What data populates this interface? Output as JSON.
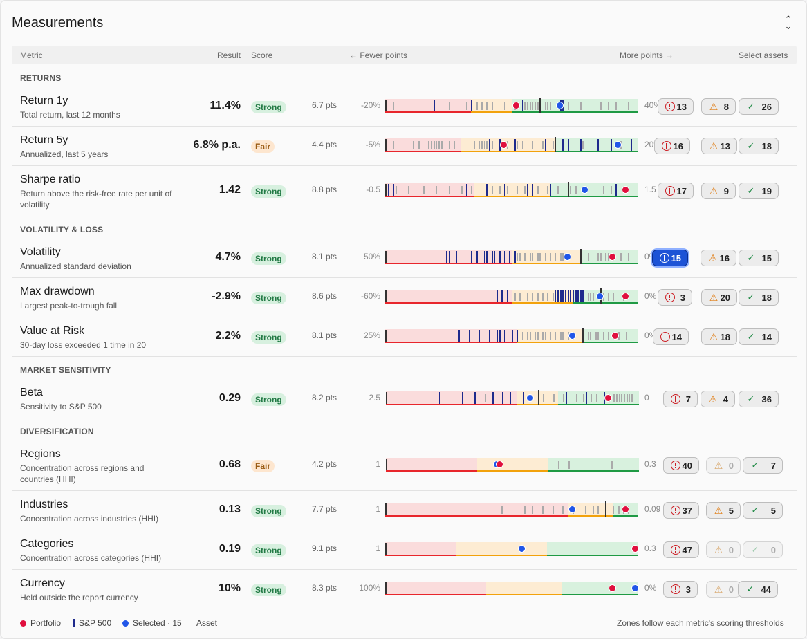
{
  "panel": {
    "title": "Measurements",
    "collapse_icon": "chevrons-collapse-icon"
  },
  "header": {
    "metric": "Metric",
    "result": "Result",
    "score": "Score",
    "fewer": "← Fewer points",
    "more": "More points →",
    "select": "Select assets"
  },
  "colors": {
    "strong_bg": "#d7f0df",
    "fair_bg": "#fde6cf",
    "zone_red": "#fadcdc",
    "zone_yellow": "#fdecd3",
    "zone_green": "#d8f1de",
    "portfolio": "#e0103e",
    "selected": "#2156e8",
    "sp500": "#1e2a8c"
  },
  "sections": [
    {
      "title": "RETURNS",
      "rows": [
        {
          "name": "Return 1y",
          "desc": "Total return, last 12 months",
          "result": "11.4%",
          "score": "Strong",
          "pts": "6.7 pts",
          "lo": "-20%",
          "hi": "40%",
          "zones": [
            0.34,
            0.5
          ],
          "portfolio": 0.52,
          "selected": 0.69,
          "sp500": 0.61,
          "ticks": [
            0.03,
            0.25,
            0.32,
            0.34,
            0.36,
            0.38,
            0.4,
            0.42,
            0.47,
            0.51,
            0.55,
            0.56,
            0.57,
            0.58,
            0.59,
            0.6,
            0.63,
            0.64,
            0.65,
            0.72,
            0.77,
            0.85,
            0.88,
            0.91,
            0.96
          ],
          "sel_ticks": [
            0.19,
            0.34,
            0.54,
            0.69,
            0.7
          ],
          "chips": {
            "err": "13",
            "warn": "8",
            "ok": "26"
          },
          "active": false
        },
        {
          "name": "Return 5y",
          "desc": "Annualized, last 5 years",
          "result": "6.8% p.a.",
          "score": "Fair",
          "pts": "4.4 pts",
          "lo": "-5%",
          "hi": "20%",
          "zones": [
            0.3,
            0.67
          ],
          "portfolio": 0.47,
          "selected": 0.92,
          "sp500": 0.67,
          "ticks": [
            0.03,
            0.11,
            0.13,
            0.17,
            0.18,
            0.19,
            0.2,
            0.21,
            0.22,
            0.25,
            0.27,
            0.35,
            0.37,
            0.38,
            0.39,
            0.4,
            0.42,
            0.48,
            0.52,
            0.54,
            0.58,
            0.62,
            0.66,
            0.7,
            0.78,
            0.93
          ],
          "sel_ticks": [
            0.41,
            0.45,
            0.51,
            0.63,
            0.7,
            0.72,
            0.77,
            0.84,
            0.89,
            0.97
          ],
          "chips": {
            "err": "16",
            "warn": "13",
            "ok": "18"
          },
          "active": false
        },
        {
          "name": "Sharpe ratio",
          "desc": "Return above the risk-free rate per unit of volatility",
          "result": "1.42",
          "score": "Strong",
          "pts": "8.8 pts",
          "lo": "-0.5",
          "hi": "1.5",
          "zones": [
            0.35,
            0.65
          ],
          "portfolio": 0.95,
          "selected": 0.79,
          "sp500": 0.72,
          "ticks": [
            0.04,
            0.09,
            0.15,
            0.2,
            0.25,
            0.3,
            0.34,
            0.42,
            0.45,
            0.48,
            0.52,
            0.55,
            0.6,
            0.64,
            0.68,
            0.73,
            0.75,
            0.86,
            0.89
          ],
          "sel_ticks": [
            0.01,
            0.03,
            0.32,
            0.4,
            0.47,
            0.56,
            0.58,
            0.65,
            0.72,
            0.91
          ],
          "chips": {
            "err": "17",
            "warn": "9",
            "ok": "19"
          },
          "active": false
        }
      ]
    },
    {
      "title": "VOLATILITY & LOSS",
      "rows": [
        {
          "name": "Volatility",
          "desc": "Annualized standard deviation",
          "result": "4.7%",
          "score": "Strong",
          "pts": "8.1 pts",
          "lo": "50%",
          "hi": "0%",
          "zones": [
            0.5,
            0.77
          ],
          "portfolio": 0.9,
          "selected": 0.72,
          "sp500": 0.77,
          "ticks": [
            0.51,
            0.52,
            0.53,
            0.55,
            0.57,
            0.58,
            0.6,
            0.61,
            0.63,
            0.65,
            0.67,
            0.69,
            0.7,
            0.8,
            0.84,
            0.85,
            0.87,
            0.88,
            0.9,
            0.93,
            0.96
          ],
          "sel_ticks": [
            0.24,
            0.25,
            0.28,
            0.34,
            0.36,
            0.39,
            0.4,
            0.42,
            0.43,
            0.45,
            0.47,
            0.49,
            0.51
          ],
          "chips": {
            "err": "15",
            "warn": "16",
            "ok": "15"
          },
          "active": true
        },
        {
          "name": "Max drawdown",
          "desc": "Largest peak-to-trough fall",
          "result": "-2.9%",
          "score": "Strong",
          "pts": "8.6 pts",
          "lo": "-60%",
          "hi": "0%",
          "zones": [
            0.5,
            0.74
          ],
          "portfolio": 0.95,
          "selected": 0.85,
          "sp500": 0.85,
          "ticks": [
            0.51,
            0.53,
            0.56,
            0.58,
            0.6,
            0.62,
            0.64,
            0.66,
            0.68,
            0.72,
            0.75,
            0.8,
            0.81,
            0.82,
            0.86,
            0.88,
            0.9,
            0.94
          ],
          "sel_ticks": [
            0.44,
            0.46,
            0.48,
            0.67,
            0.68,
            0.69,
            0.7,
            0.71,
            0.72,
            0.73,
            0.74,
            0.75,
            0.76,
            0.77,
            0.78
          ],
          "chips": {
            "err": "3",
            "warn": "20",
            "ok": "18"
          },
          "active": false
        },
        {
          "name": "Value at Risk",
          "desc": "30-day loss exceeded 1 time in 20",
          "result": "2.2%",
          "score": "Strong",
          "pts": "8.1 pts",
          "lo": "25%",
          "hi": "0%",
          "zones": [
            0.52,
            0.78
          ],
          "portfolio": 0.91,
          "selected": 0.74,
          "sp500": 0.78,
          "ticks": [
            0.54,
            0.56,
            0.57,
            0.59,
            0.6,
            0.62,
            0.63,
            0.65,
            0.67,
            0.69,
            0.7,
            0.72,
            0.74,
            0.8,
            0.81,
            0.83,
            0.84,
            0.86,
            0.88,
            0.9,
            0.92,
            0.95
          ],
          "sel_ticks": [
            0.29,
            0.33,
            0.37,
            0.41,
            0.44,
            0.45,
            0.47,
            0.5,
            0.52,
            0.52
          ],
          "chips": {
            "err": "14",
            "warn": "18",
            "ok": "14"
          },
          "active": false
        }
      ]
    },
    {
      "title": "MARKET SENSITIVITY",
      "rows": [
        {
          "name": "Beta",
          "desc": "Sensitivity to S&P 500",
          "result": "0.29",
          "score": "Strong",
          "pts": "8.2 pts",
          "lo": "2.5",
          "hi": "0",
          "zones": [
            0.52,
            0.68
          ],
          "portfolio": 0.88,
          "selected": 0.57,
          "sp500": 0.6,
          "ticks": [
            0.3,
            0.39,
            0.62,
            0.66,
            0.7,
            0.75,
            0.78,
            0.81,
            0.83,
            0.86,
            0.88,
            0.9,
            0.91,
            0.92,
            0.93,
            0.94,
            0.95,
            0.96,
            0.97
          ],
          "sel_ticks": [
            0.21,
            0.3,
            0.35,
            0.42,
            0.46,
            0.49,
            0.54,
            0.71,
            0.79,
            0.86
          ],
          "chips": {
            "err": "7",
            "warn": "4",
            "ok": "36"
          },
          "active": false
        }
      ]
    },
    {
      "title": "DIVERSIFICATION",
      "rows": [
        {
          "name": "Regions",
          "desc": "Concentration across regions and countries (HHI)",
          "result": "0.68",
          "score": "Fair",
          "pts": "4.2 pts",
          "lo": "1",
          "hi": "0.3",
          "zones": [
            0.36,
            0.64
          ],
          "portfolio": 0.45,
          "selected": 0.44,
          "sp500": 0.0,
          "ticks": [
            0.68,
            0.72,
            0.89
          ],
          "sel_ticks": [],
          "chips": {
            "err": "40",
            "warn": "0",
            "ok": "7"
          },
          "active": false
        },
        {
          "name": "Industries",
          "desc": "Concentration across industries (HHI)",
          "result": "0.13",
          "score": "Strong",
          "pts": "7.7 pts",
          "lo": "1",
          "hi": "0.09",
          "zones": [
            0.72,
            0.9
          ],
          "portfolio": 0.95,
          "selected": 0.74,
          "sp500": 0.87,
          "ticks": [
            0.46,
            0.55,
            0.58,
            0.62,
            0.66,
            0.7,
            0.74,
            0.79,
            0.82,
            0.84,
            0.9,
            0.92,
            0.94,
            0.96
          ],
          "sel_ticks": [],
          "chips": {
            "err": "37",
            "warn": "5",
            "ok": "5"
          },
          "active": false
        },
        {
          "name": "Categories",
          "desc": "Concentration across categories (HHI)",
          "result": "0.19",
          "score": "Strong",
          "pts": "9.1 pts",
          "lo": "1",
          "hi": "0.3",
          "zones": [
            0.28,
            0.64
          ],
          "portfolio": 0.99,
          "selected": 0.54,
          "sp500": 0.0,
          "ticks": [],
          "sel_ticks": [],
          "chips": {
            "err": "47",
            "warn": "0",
            "ok": "0"
          },
          "active": false
        },
        {
          "name": "Currency",
          "desc": "Held outside the report currency",
          "result": "10%",
          "score": "Strong",
          "pts": "8.3 pts",
          "lo": "100%",
          "hi": "0%",
          "zones": [
            0.4,
            0.7
          ],
          "portfolio": 0.9,
          "selected": 0.99,
          "sp500": 0.0,
          "ticks": [],
          "sel_ticks": [],
          "chips": {
            "err": "3",
            "warn": "0",
            "ok": "44"
          },
          "active": false
        }
      ]
    }
  ],
  "legend": {
    "portfolio": "Portfolio",
    "sp500": "S&P 500",
    "selected": "Selected · 15",
    "asset": "Asset",
    "note": "Zones follow each metric's scoring thresholds"
  }
}
